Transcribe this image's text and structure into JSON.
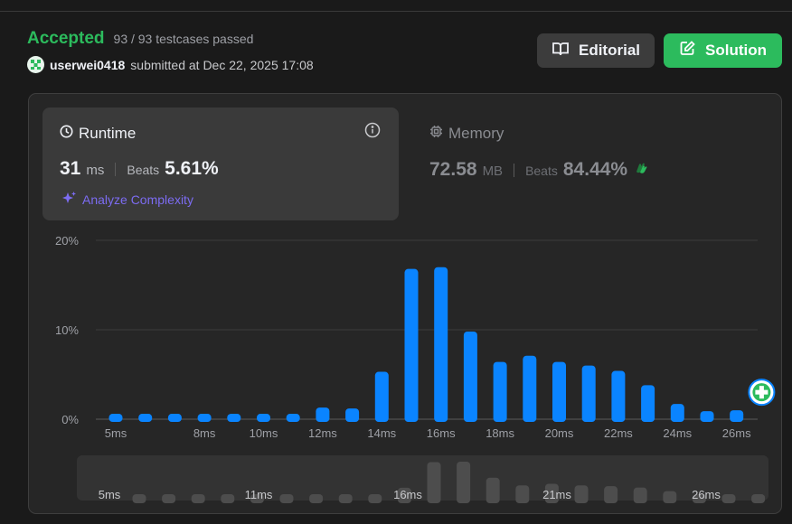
{
  "result": {
    "status": "Accepted",
    "testcases": "93 / 93 testcases passed",
    "username": "userwei0418",
    "submitted": "submitted at Dec 22, 2025 17:08"
  },
  "buttons": {
    "editorial": "Editorial",
    "solution": "Solution"
  },
  "runtime": {
    "title": "Runtime",
    "value": "31",
    "unit": "ms",
    "beats_label": "Beats",
    "beats_value": "5.61%",
    "analyze": "Analyze Complexity"
  },
  "memory": {
    "title": "Memory",
    "value": "72.58",
    "unit": "MB",
    "beats_label": "Beats",
    "beats_value": "84.44%"
  },
  "colors": {
    "accent_green": "#2cbb5d",
    "bar_blue": "#0a84ff",
    "analyze_purple": "#7c6cf2"
  },
  "chart_data": {
    "type": "bar",
    "categories": [
      "5ms",
      "6ms",
      "7ms",
      "8ms",
      "9ms",
      "10ms",
      "11ms",
      "12ms",
      "13ms",
      "14ms",
      "15ms",
      "16ms",
      "17ms",
      "18ms",
      "19ms",
      "20ms",
      "21ms",
      "22ms",
      "23ms",
      "24ms",
      "25ms",
      "26ms",
      "27ms"
    ],
    "values": [
      0.6,
      0.6,
      0.6,
      0.6,
      0.6,
      0.6,
      0.6,
      1.3,
      1.2,
      5.3,
      16.8,
      17.0,
      9.8,
      6.4,
      7.1,
      6.4,
      6.0,
      5.4,
      3.8,
      1.7,
      0.9,
      1.0,
      0
    ],
    "ylim": [
      0,
      20
    ],
    "yticks": [
      "0%",
      "10%",
      "20%"
    ],
    "xtick_labels": [
      "5ms",
      "8ms",
      "10ms",
      "12ms",
      "14ms",
      "16ms",
      "18ms",
      "20ms",
      "22ms",
      "24ms",
      "26ms"
    ],
    "your_submission_category": "27ms",
    "grid": true
  },
  "overview": {
    "labels": [
      "5ms",
      "11ms",
      "16ms",
      "21ms",
      "26ms"
    ]
  }
}
